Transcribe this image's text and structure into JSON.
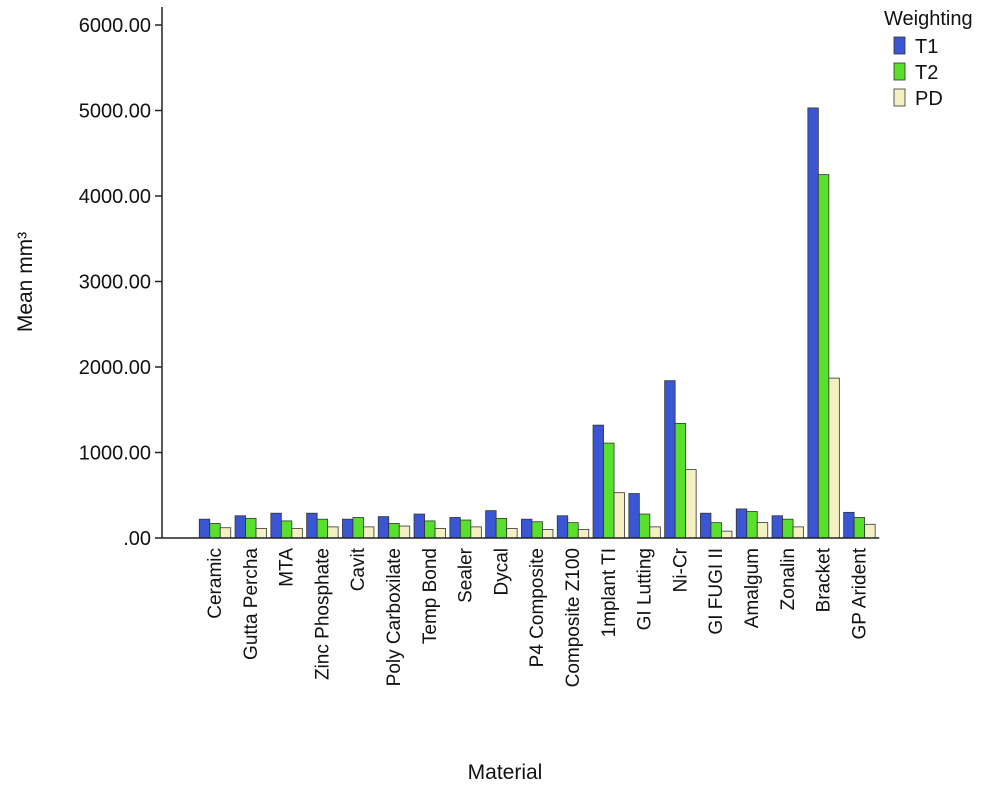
{
  "chart_data": {
    "type": "bar",
    "xlabel": "Material",
    "ylabel": "Mean mm³",
    "ylim": [
      0,
      6000
    ],
    "yticks": [
      {
        "value": 0,
        "label": ".00"
      },
      {
        "value": 1000,
        "label": "1000.00"
      },
      {
        "value": 2000,
        "label": "2000.00"
      },
      {
        "value": 3000,
        "label": "3000.00"
      },
      {
        "value": 4000,
        "label": "4000.00"
      },
      {
        "value": 5000,
        "label": "5000.00"
      },
      {
        "value": 6000,
        "label": "6000.00"
      }
    ],
    "grid": false,
    "legend": {
      "title": "Weighting",
      "position": "top-right"
    },
    "categories": [
      "Ceramic",
      "Gutta Percha",
      "MTA",
      "Zinc Phosphate",
      "Cavit",
      "Poly Carboxilate",
      "Temp Bond",
      "Sealer",
      "Dycal",
      "P4 Composite",
      "Composite Z100",
      "1mplant TI",
      "GI Lutting",
      "Ni-Cr",
      "GI FUGI II",
      "Amalgum",
      "Zonalin",
      "Bracket",
      "GP Arident"
    ],
    "series": [
      {
        "name": "T1",
        "color": "#3a56d4",
        "values": [
          220,
          260,
          290,
          290,
          220,
          250,
          280,
          240,
          320,
          220,
          260,
          1320,
          520,
          1840,
          290,
          340,
          260,
          5030,
          300
        ]
      },
      {
        "name": "T2",
        "color": "#58e02c",
        "values": [
          170,
          230,
          200,
          220,
          240,
          170,
          200,
          210,
          230,
          190,
          180,
          1110,
          280,
          1340,
          180,
          310,
          220,
          4250,
          240
        ]
      },
      {
        "name": "PD",
        "color": "#f4f0c4",
        "values": [
          120,
          110,
          110,
          130,
          130,
          140,
          110,
          130,
          110,
          100,
          100,
          530,
          130,
          800,
          80,
          180,
          130,
          1870,
          160
        ]
      }
    ]
  }
}
